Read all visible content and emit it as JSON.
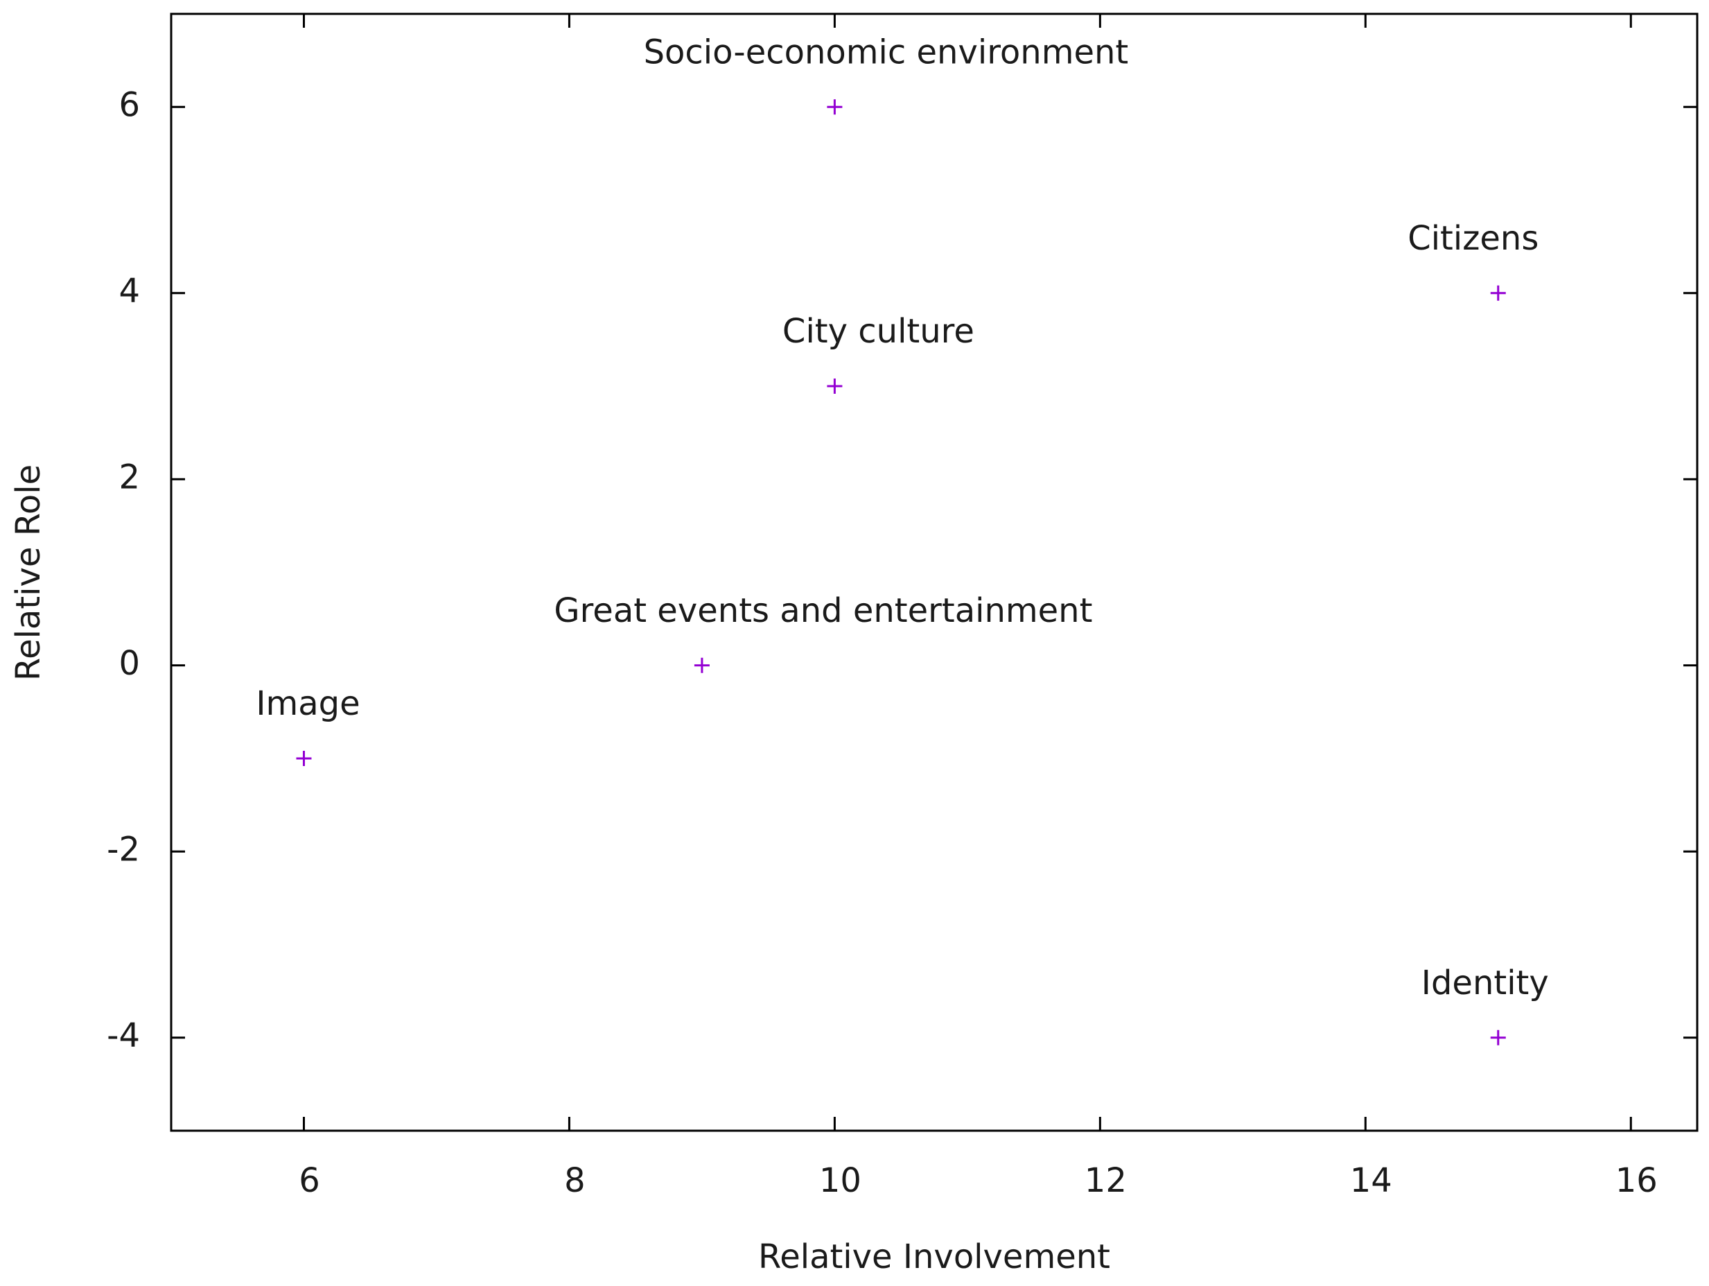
{
  "chart_data": {
    "type": "scatter",
    "x_label": "Relative Involvement",
    "y_label": "Relative Role",
    "x": [
      10,
      15,
      10,
      9,
      6,
      15
    ],
    "values": [
      6,
      4,
      3,
      0,
      -1,
      -4
    ],
    "point_labels": [
      "Socio-economic environment",
      "Citizens",
      "City culture",
      "Great events and entertainment",
      "Image",
      "Identity"
    ],
    "color": "#9400d3",
    "xlim": [
      5,
      16.5
    ],
    "ylim": [
      -5,
      7
    ],
    "xticks": [
      6,
      8,
      10,
      12,
      14,
      16
    ],
    "yticks": [
      -4,
      -2,
      0,
      2,
      4,
      6
    ],
    "grid": false
  }
}
